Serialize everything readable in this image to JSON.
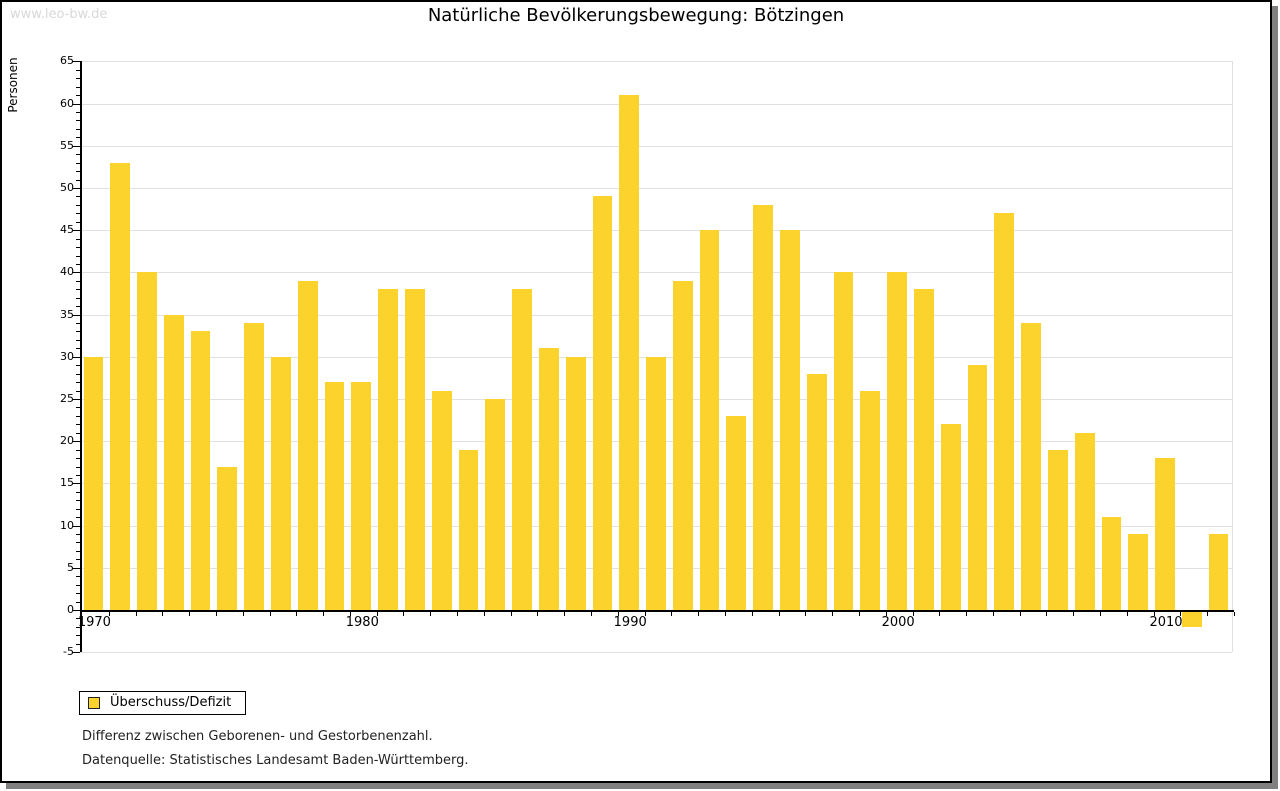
{
  "watermark": "www.leo-bw.de",
  "chart_data": {
    "type": "bar",
    "title": "Natürliche Bevölkerungsbewegung: Bötzingen",
    "ylabel": "Personen",
    "xlabel": "",
    "categories": [
      1970,
      1971,
      1972,
      1973,
      1974,
      1975,
      1976,
      1977,
      1978,
      1979,
      1980,
      1981,
      1982,
      1983,
      1984,
      1985,
      1986,
      1987,
      1988,
      1989,
      1990,
      1991,
      1992,
      1993,
      1994,
      1995,
      1996,
      1997,
      1998,
      1999,
      2000,
      2001,
      2002,
      2003,
      2004,
      2005,
      2006,
      2007,
      2008,
      2009,
      2010,
      2011,
      2012
    ],
    "values": [
      30,
      53,
      40,
      35,
      33,
      17,
      34,
      30,
      39,
      27,
      27,
      38,
      38,
      26,
      19,
      25,
      38,
      31,
      30,
      49,
      61,
      30,
      39,
      45,
      23,
      48,
      45,
      28,
      40,
      26,
      40,
      38,
      22,
      29,
      47,
      34,
      19,
      21,
      11,
      9,
      18,
      -2,
      9
    ],
    "series_name": "Überschuss/Defizit",
    "bar_color": "#fcd32d",
    "ylim": [
      -5,
      65
    ],
    "yticks": [
      65,
      60,
      55,
      50,
      45,
      40,
      35,
      30,
      25,
      20,
      15,
      10,
      5,
      0,
      -5
    ],
    "xticks": [
      1970,
      1980,
      1990,
      2000,
      2010
    ],
    "grid": true,
    "legend_position": "bottom-left"
  },
  "legend": {
    "label": "Überschuss/Defizit",
    "swatch_color": "#fcd32d"
  },
  "footnotes": [
    "Differenz zwischen Geborenen- und Gestorbenenzahl.",
    "Datenquelle: Statistisches Landesamt Baden-Württemberg."
  ]
}
